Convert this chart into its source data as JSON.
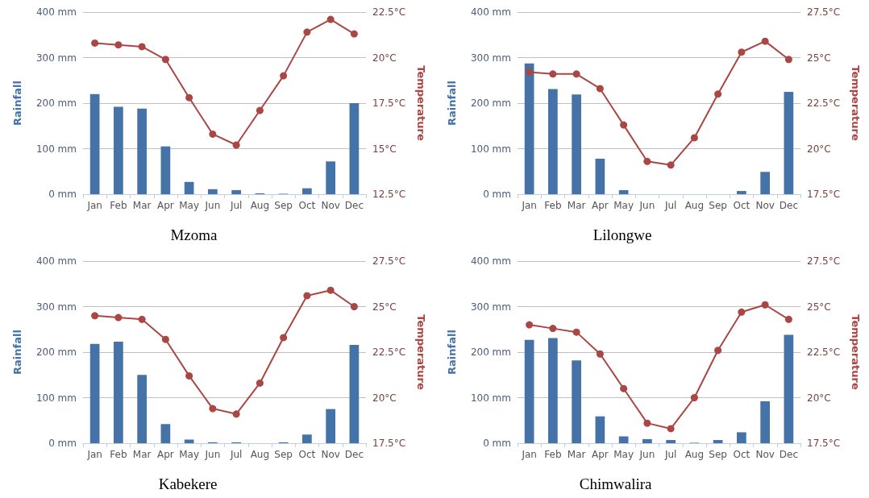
{
  "chart_data": [
    {
      "type": "bar",
      "title": "Mzoma",
      "ylabel": "Rainfall",
      "y2label": "Temperature",
      "categories": [
        "Jan",
        "Feb",
        "Mar",
        "Apr",
        "May",
        "Jun",
        "Jul",
        "Aug",
        "Sep",
        "Oct",
        "Nov",
        "Dec"
      ],
      "series": [
        {
          "color": "#4572a7",
          "values": [
            220,
            192,
            188,
            105,
            27,
            11,
            9,
            2,
            1,
            13,
            72,
            200
          ]
        },
        {
          "type": "line",
          "axis": "y2",
          "color": "#aa4643",
          "marker": "circle",
          "values": [
            20.8,
            20.7,
            20.6,
            19.9,
            17.8,
            15.8,
            15.2,
            17.1,
            19.0,
            21.4,
            22.1,
            21.3
          ]
        }
      ],
      "ylim": [
        0,
        400
      ],
      "yticks": [
        {
          "value": 0,
          "label": "0 mm"
        },
        {
          "value": 100,
          "label": "100 mm"
        },
        {
          "value": 200,
          "label": "200 mm"
        },
        {
          "value": 300,
          "label": "300 mm"
        },
        {
          "value": 400,
          "label": "400 mm"
        }
      ],
      "y2lim": [
        12.5,
        22.5
      ],
      "y2ticks": [
        {
          "value": 12.5,
          "label": "12.5°C"
        },
        {
          "value": 15,
          "label": "15°C"
        },
        {
          "value": 17.5,
          "label": "17.5°C"
        },
        {
          "value": 20,
          "label": "20°C"
        },
        {
          "value": 22.5,
          "label": "22.5°C"
        }
      ],
      "grid": "y"
    },
    {
      "type": "bar",
      "title": "Lilongwe",
      "ylabel": "Rainfall",
      "y2label": "Temperature",
      "categories": [
        "Jan",
        "Feb",
        "Mar",
        "Apr",
        "May",
        "Jun",
        "Jul",
        "Aug",
        "Sep",
        "Oct",
        "Nov",
        "Dec"
      ],
      "series": [
        {
          "color": "#4572a7",
          "values": [
            287,
            231,
            219,
            78,
            9,
            0,
            0,
            0,
            0,
            7,
            49,
            225
          ]
        },
        {
          "type": "line",
          "axis": "y2",
          "color": "#aa4643",
          "marker": "circle",
          "values": [
            24.2,
            24.1,
            24.1,
            23.3,
            21.3,
            19.3,
            19.1,
            20.6,
            23.0,
            25.3,
            25.9,
            24.9
          ]
        }
      ],
      "ylim": [
        0,
        400
      ],
      "yticks": [
        {
          "value": 0,
          "label": "0 mm"
        },
        {
          "value": 100,
          "label": "100 mm"
        },
        {
          "value": 200,
          "label": "200 mm"
        },
        {
          "value": 300,
          "label": "300 mm"
        },
        {
          "value": 400,
          "label": "400 mm"
        }
      ],
      "y2lim": [
        17.5,
        27.5
      ],
      "y2ticks": [
        {
          "value": 17.5,
          "label": "17.5°C"
        },
        {
          "value": 20,
          "label": "20°C"
        },
        {
          "value": 22.5,
          "label": "22.5°C"
        },
        {
          "value": 25,
          "label": "25°C"
        },
        {
          "value": 27.5,
          "label": "27.5°C"
        }
      ],
      "grid": "y"
    },
    {
      "type": "bar",
      "title": "Kabekere",
      "ylabel": "Rainfall",
      "y2label": "Temperature",
      "categories": [
        "Jan",
        "Feb",
        "Mar",
        "Apr",
        "May",
        "Jun",
        "Jul",
        "Aug",
        "Sep",
        "Oct",
        "Nov",
        "Dec"
      ],
      "series": [
        {
          "color": "#4572a7",
          "values": [
            218,
            223,
            150,
            42,
            8,
            2,
            2,
            0,
            2,
            19,
            75,
            216
          ]
        },
        {
          "type": "line",
          "axis": "y2",
          "color": "#aa4643",
          "marker": "circle",
          "values": [
            24.5,
            24.4,
            24.3,
            23.2,
            21.2,
            19.4,
            19.1,
            20.8,
            23.3,
            25.6,
            25.9,
            25.0
          ]
        }
      ],
      "ylim": [
        0,
        400
      ],
      "yticks": [
        {
          "value": 0,
          "label": "0 mm"
        },
        {
          "value": 100,
          "label": "100 mm"
        },
        {
          "value": 200,
          "label": "200 mm"
        },
        {
          "value": 300,
          "label": "300 mm"
        },
        {
          "value": 400,
          "label": "400 mm"
        }
      ],
      "y2lim": [
        17.5,
        27.5
      ],
      "y2ticks": [
        {
          "value": 17.5,
          "label": "17.5°C"
        },
        {
          "value": 20,
          "label": "20°C"
        },
        {
          "value": 22.5,
          "label": "22.5°C"
        },
        {
          "value": 25,
          "label": "25°C"
        },
        {
          "value": 27.5,
          "label": "27.5°C"
        }
      ],
      "grid": "y"
    },
    {
      "type": "bar",
      "title": "Chimwalira",
      "ylabel": "Rainfall",
      "y2label": "Temperature",
      "categories": [
        "Jan",
        "Feb",
        "Mar",
        "Apr",
        "May",
        "Jun",
        "Jul",
        "Aug",
        "Sep",
        "Oct",
        "Nov",
        "Dec"
      ],
      "series": [
        {
          "color": "#4572a7",
          "values": [
            227,
            231,
            182,
            59,
            15,
            9,
            7,
            1,
            7,
            24,
            92,
            238
          ]
        },
        {
          "type": "line",
          "axis": "y2",
          "color": "#aa4643",
          "marker": "circle",
          "values": [
            24.0,
            23.8,
            23.6,
            22.4,
            20.5,
            18.6,
            18.3,
            20.0,
            22.6,
            24.7,
            25.1,
            24.3
          ]
        }
      ],
      "ylim": [
        0,
        400
      ],
      "yticks": [
        {
          "value": 0,
          "label": "0 mm"
        },
        {
          "value": 100,
          "label": "100 mm"
        },
        {
          "value": 200,
          "label": "200 mm"
        },
        {
          "value": 300,
          "label": "300 mm"
        },
        {
          "value": 400,
          "label": "400 mm"
        }
      ],
      "y2lim": [
        17.5,
        27.5
      ],
      "y2ticks": [
        {
          "value": 17.5,
          "label": "17.5°C"
        },
        {
          "value": 20,
          "label": "20°C"
        },
        {
          "value": 22.5,
          "label": "22.5°C"
        },
        {
          "value": 25,
          "label": "25°C"
        },
        {
          "value": 27.5,
          "label": "27.5°C"
        }
      ],
      "grid": "y"
    }
  ]
}
